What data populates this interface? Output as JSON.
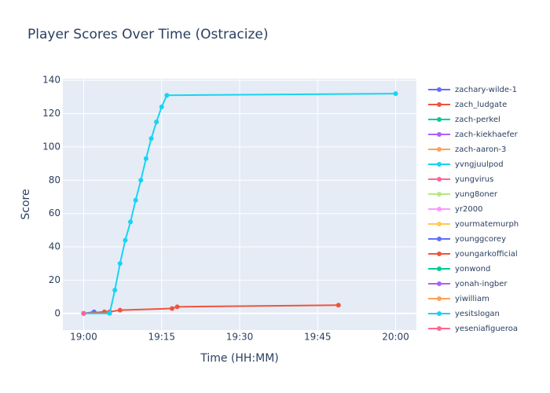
{
  "chart_data": {
    "type": "line",
    "title": "Player Scores Over Time (Ostracize)",
    "x_label": "Time (HH:MM)",
    "y_label": "Score",
    "xlim": [
      "18:56",
      "20:04"
    ],
    "xticks": [
      "19:00",
      "19:15",
      "19:30",
      "19:45",
      "20:00"
    ],
    "ylim": [
      -10,
      141
    ],
    "yticks": [
      0,
      20,
      40,
      60,
      80,
      100,
      120,
      140
    ],
    "grid": true,
    "series": [
      {
        "name": "zachary-wilde-1",
        "color": "#636efa",
        "x": [
          "19:00"
        ],
        "values": [
          0
        ]
      },
      {
        "name": "zach_ludgate",
        "color": "#EF553B",
        "x": [
          "19:00"
        ],
        "values": [
          0
        ]
      },
      {
        "name": "zach-perkel",
        "color": "#00cc96",
        "x": [
          "19:00"
        ],
        "values": [
          0
        ]
      },
      {
        "name": "zach-kiekhaefer",
        "color": "#ab63fa",
        "x": [
          "19:00"
        ],
        "values": [
          0
        ]
      },
      {
        "name": "zach-aaron-3",
        "color": "#FFA15A",
        "x": [
          "19:00"
        ],
        "values": [
          0
        ]
      },
      {
        "name": "yvngjuulpod",
        "color": "#19d3f3",
        "x": [
          "19:00"
        ],
        "values": [
          0
        ]
      },
      {
        "name": "yungvirus",
        "color": "#FF6692",
        "x": [
          "19:00"
        ],
        "values": [
          0
        ]
      },
      {
        "name": "yung8oner",
        "color": "#B6E880",
        "x": [
          "19:00"
        ],
        "values": [
          0
        ]
      },
      {
        "name": "yr2000",
        "color": "#FF97FF",
        "x": [
          "19:00"
        ],
        "values": [
          0
        ]
      },
      {
        "name": "yourmatemurph",
        "color": "#FECB52",
        "x": [
          "19:00"
        ],
        "values": [
          0
        ]
      },
      {
        "name": "younggcorey",
        "color": "#636efa",
        "x": [
          "19:00",
          "19:02"
        ],
        "values": [
          0,
          1
        ]
      },
      {
        "name": "youngarkofficial",
        "color": "#EF553B",
        "x": [
          "19:00",
          "19:04",
          "19:05",
          "19:07",
          "19:17",
          "19:18",
          "19:49"
        ],
        "values": [
          0,
          1,
          1,
          2,
          3,
          4,
          5
        ]
      },
      {
        "name": "yonwond",
        "color": "#00cc96",
        "x": [
          "19:00"
        ],
        "values": [
          0
        ]
      },
      {
        "name": "yonah-ingber",
        "color": "#ab63fa",
        "x": [
          "19:00"
        ],
        "values": [
          0
        ]
      },
      {
        "name": "yiwilliam",
        "color": "#FFA15A",
        "x": [
          "19:00"
        ],
        "values": [
          0
        ]
      },
      {
        "name": "yesitslogan",
        "color": "#19d3f3",
        "x": [
          "19:00",
          "19:05",
          "19:06",
          "19:07",
          "19:08",
          "19:09",
          "19:10",
          "19:11",
          "19:12",
          "19:13",
          "19:14",
          "19:15",
          "19:16",
          "20:00"
        ],
        "values": [
          0,
          0,
          14,
          30,
          44,
          55,
          68,
          80,
          93,
          105,
          115,
          124,
          131,
          132
        ]
      },
      {
        "name": "yeseniafigueroa",
        "color": "#FF6692",
        "x": [
          "19:00"
        ],
        "values": [
          0
        ]
      }
    ]
  }
}
